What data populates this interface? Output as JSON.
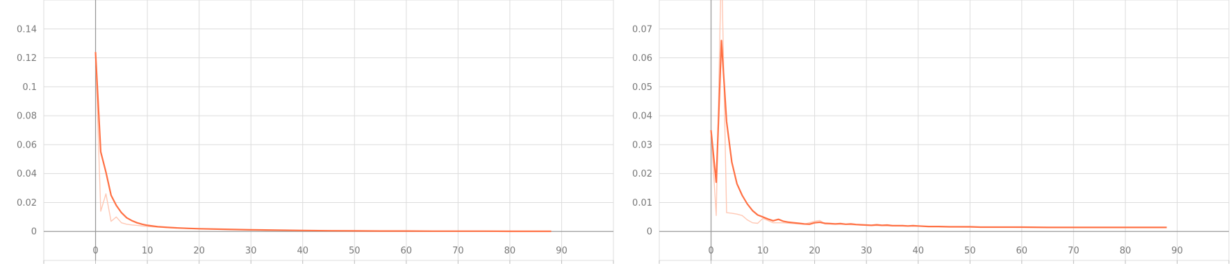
{
  "chart_data": [
    {
      "type": "line",
      "title": "",
      "xlabel": "",
      "ylabel": "",
      "xlim": [
        -10,
        100
      ],
      "ylim": [
        -0.02,
        0.16
      ],
      "grid": true,
      "x_ticks": [
        0,
        10,
        20,
        30,
        40,
        50,
        60,
        70,
        80,
        90
      ],
      "x_tick_labels": [
        "0",
        "10",
        "20",
        "30",
        "40",
        "50",
        "60",
        "70",
        "80",
        "90"
      ],
      "y_ticks": [
        0,
        0.02,
        0.04,
        0.06,
        0.08,
        0.1,
        0.12,
        0.14
      ],
      "y_tick_labels": [
        "0",
        "0.02",
        "0.04",
        "0.06",
        "0.08",
        "0.1",
        "0.12",
        "0.14"
      ],
      "series": [
        {
          "role": "smoothed",
          "color": "#ff7043",
          "x": [
            0,
            1,
            2,
            3,
            4,
            5,
            6,
            7,
            8,
            9,
            10,
            12,
            14,
            16,
            18,
            20,
            25,
            30,
            35,
            40,
            45,
            50,
            55,
            60,
            65,
            70,
            75,
            80,
            85,
            88
          ],
          "y": [
            0.124,
            0.055,
            0.041,
            0.025,
            0.018,
            0.013,
            0.0095,
            0.0075,
            0.006,
            0.005,
            0.0042,
            0.0033,
            0.0028,
            0.0024,
            0.0021,
            0.0019,
            0.0015,
            0.0011,
            0.0009,
            0.0007,
            0.0005,
            0.0004,
            0.0003,
            0.0003,
            0.0002,
            0.0002,
            0.0002,
            0.0001,
            0.0001,
            0.0001
          ]
        },
        {
          "role": "raw",
          "color": "#ffc7b3",
          "x": [
            0,
            1,
            2,
            3,
            4,
            5,
            6,
            7,
            8,
            9,
            10,
            12,
            14,
            16,
            18,
            20,
            25,
            30,
            35,
            40,
            45,
            50,
            55,
            60,
            65,
            70,
            75,
            80,
            85,
            88
          ],
          "y": [
            0.124,
            0.014,
            0.026,
            0.007,
            0.01,
            0.006,
            0.005,
            0.0045,
            0.0042,
            0.0038,
            0.0035,
            0.003,
            0.0026,
            0.0023,
            0.002,
            0.0018,
            0.0014,
            0.001,
            0.0008,
            0.0006,
            0.0005,
            0.0004,
            0.0003,
            0.0003,
            0.0002,
            0.0002,
            0.0002,
            0.0001,
            0.0001,
            0.0001
          ]
        }
      ]
    },
    {
      "type": "line",
      "title": "",
      "xlabel": "",
      "ylabel": "",
      "xlim": [
        -10,
        100
      ],
      "ylim": [
        -0.01,
        0.08
      ],
      "grid": true,
      "x_ticks": [
        0,
        10,
        20,
        30,
        40,
        50,
        60,
        70,
        80,
        90
      ],
      "x_tick_labels": [
        "0",
        "10",
        "20",
        "30",
        "40",
        "50",
        "60",
        "70",
        "80",
        "90"
      ],
      "y_ticks": [
        0,
        0.01,
        0.02,
        0.03,
        0.04,
        0.05,
        0.06,
        0.07
      ],
      "y_tick_labels": [
        "0",
        "0.01",
        "0.02",
        "0.03",
        "0.04",
        "0.05",
        "0.06",
        "0.07"
      ],
      "series": [
        {
          "role": "smoothed",
          "color": "#ff7043",
          "x": [
            0,
            1,
            2,
            3,
            4,
            5,
            6,
            7,
            8,
            9,
            10,
            11,
            12,
            13,
            14,
            15,
            16,
            17,
            18,
            19,
            20,
            21,
            22,
            23,
            24,
            25,
            26,
            27,
            28,
            29,
            30,
            31,
            32,
            33,
            34,
            35,
            36,
            37,
            38,
            39,
            40,
            42,
            44,
            46,
            48,
            50,
            52,
            55,
            60,
            65,
            70,
            75,
            80,
            85,
            88
          ],
          "y": [
            0.035,
            0.017,
            0.066,
            0.038,
            0.024,
            0.0165,
            0.0125,
            0.0095,
            0.0072,
            0.0057,
            0.005,
            0.0043,
            0.0037,
            0.0042,
            0.0035,
            0.0032,
            0.003,
            0.0028,
            0.0026,
            0.0025,
            0.003,
            0.0032,
            0.0028,
            0.0027,
            0.0026,
            0.0027,
            0.0025,
            0.0026,
            0.0024,
            0.0023,
            0.0022,
            0.0021,
            0.0023,
            0.0021,
            0.0022,
            0.002,
            0.002,
            0.002,
            0.0019,
            0.002,
            0.0019,
            0.0017,
            0.0017,
            0.0016,
            0.0016,
            0.0016,
            0.0015,
            0.0015,
            0.0015,
            0.0014,
            0.0014,
            0.0014,
            0.0014,
            0.0014,
            0.0014
          ]
        },
        {
          "role": "raw",
          "color": "#ffc7b3",
          "x": [
            0,
            1,
            2,
            3,
            4,
            5,
            6,
            7,
            8,
            9,
            10,
            12,
            14,
            16,
            18,
            20,
            21,
            22,
            25,
            30,
            35,
            40,
            45,
            50,
            55,
            60,
            65,
            70,
            75,
            80,
            85,
            88
          ],
          "y": [
            0.035,
            0.0055,
            0.095,
            0.0065,
            0.0063,
            0.006,
            0.0055,
            0.004,
            0.003,
            0.0028,
            0.0045,
            0.003,
            0.003,
            0.0027,
            0.0025,
            0.0035,
            0.0038,
            0.0026,
            0.0025,
            0.0021,
            0.0019,
            0.0018,
            0.0016,
            0.0015,
            0.0015,
            0.0014,
            0.0014,
            0.0014,
            0.0014,
            0.0014,
            0.0014,
            0.0014
          ]
        }
      ]
    }
  ]
}
